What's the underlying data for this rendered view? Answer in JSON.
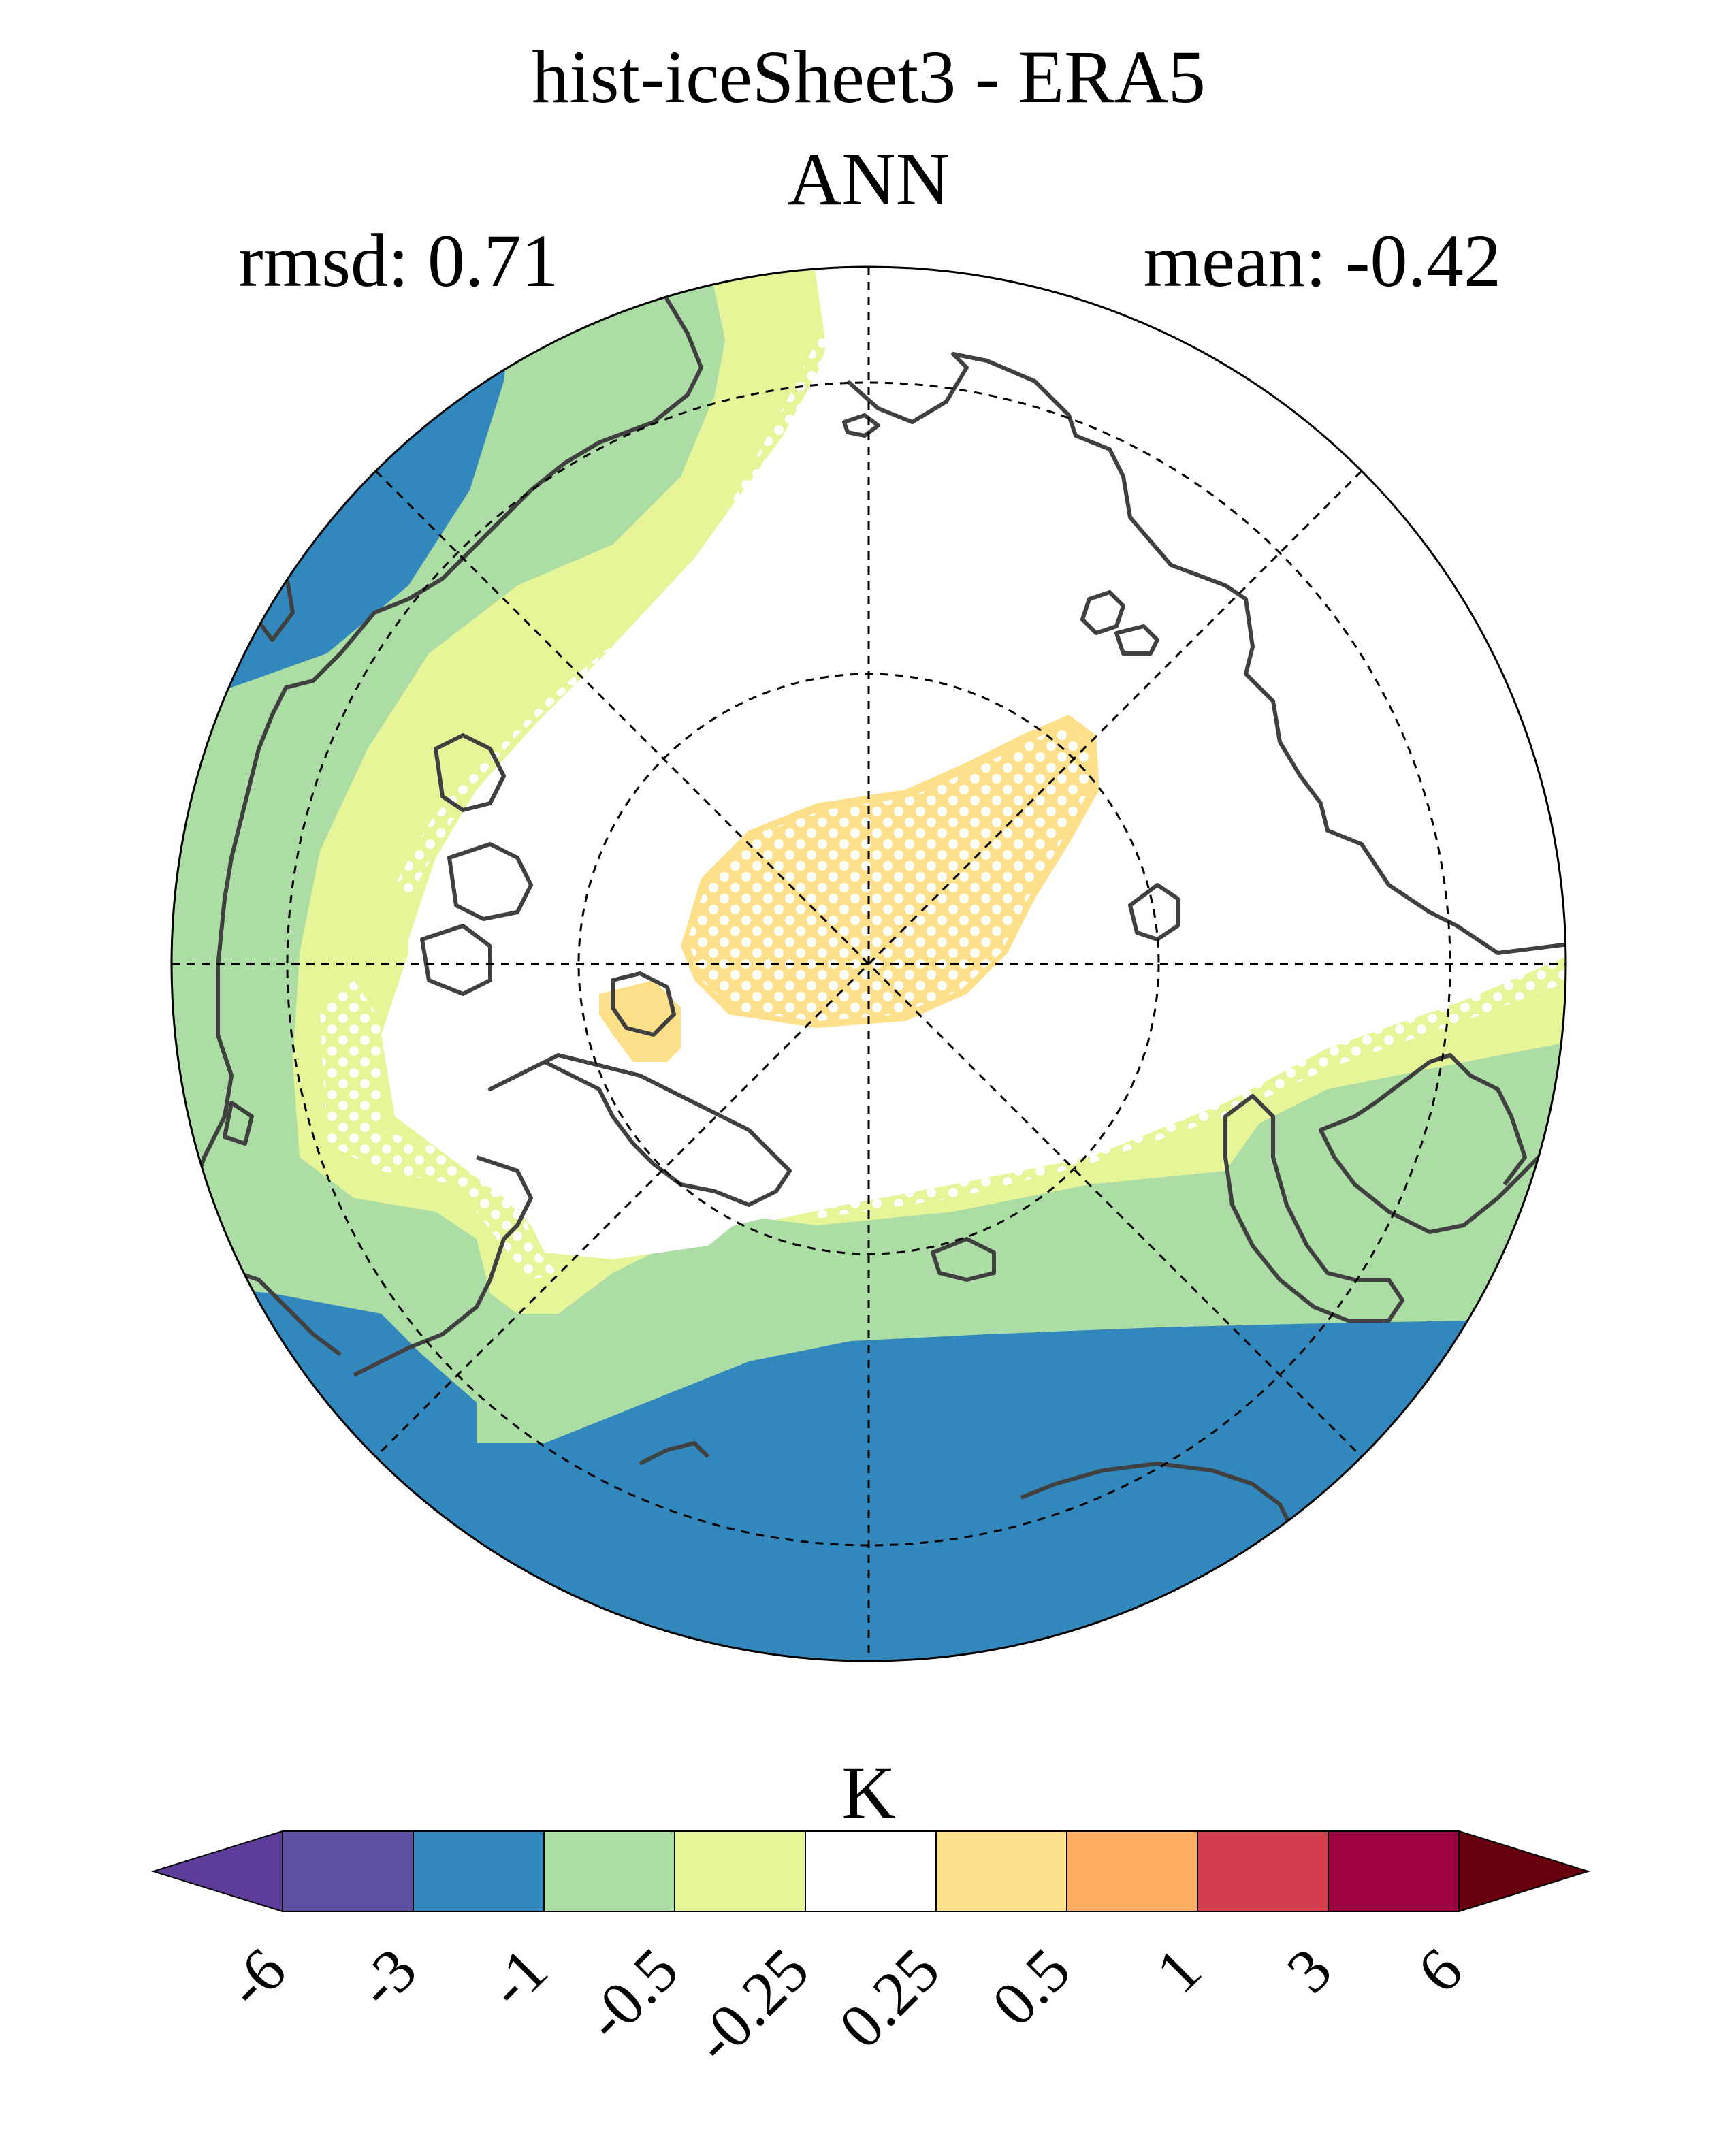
{
  "title": "hist-iceSheet3 - ERA5",
  "subtitle": "ANN",
  "stats": {
    "rmsd": "rmsd: 0.71",
    "mean": "mean: -0.42"
  },
  "map": {
    "projection": "north polar stereographic",
    "graticule": "dashed",
    "stippling": "white dots mark selected regions",
    "colors": {
      "lt_-3": "#3288bd",
      "-1_to_-0.5": "#abdda4",
      "-0.5_to_-0.25": "#e6f598",
      "-0.25_to_0.25": "#ffffff",
      "0.25_to_0.5": "#fee08b",
      "coastline": "#404040"
    }
  },
  "colorbar": {
    "unit": "K",
    "ticks": [
      "-6",
      "-3",
      "-1",
      "-0.5",
      "-0.25",
      "0.25",
      "0.5",
      "1",
      "3",
      "6"
    ],
    "colors": [
      "#5e3c99",
      "#5e4fa2",
      "#3288bd",
      "#abdda4",
      "#e6f598",
      "#ffffff",
      "#fee08b",
      "#fdae61",
      "#d53e4f",
      "#9e0142",
      "#67000d"
    ]
  }
}
